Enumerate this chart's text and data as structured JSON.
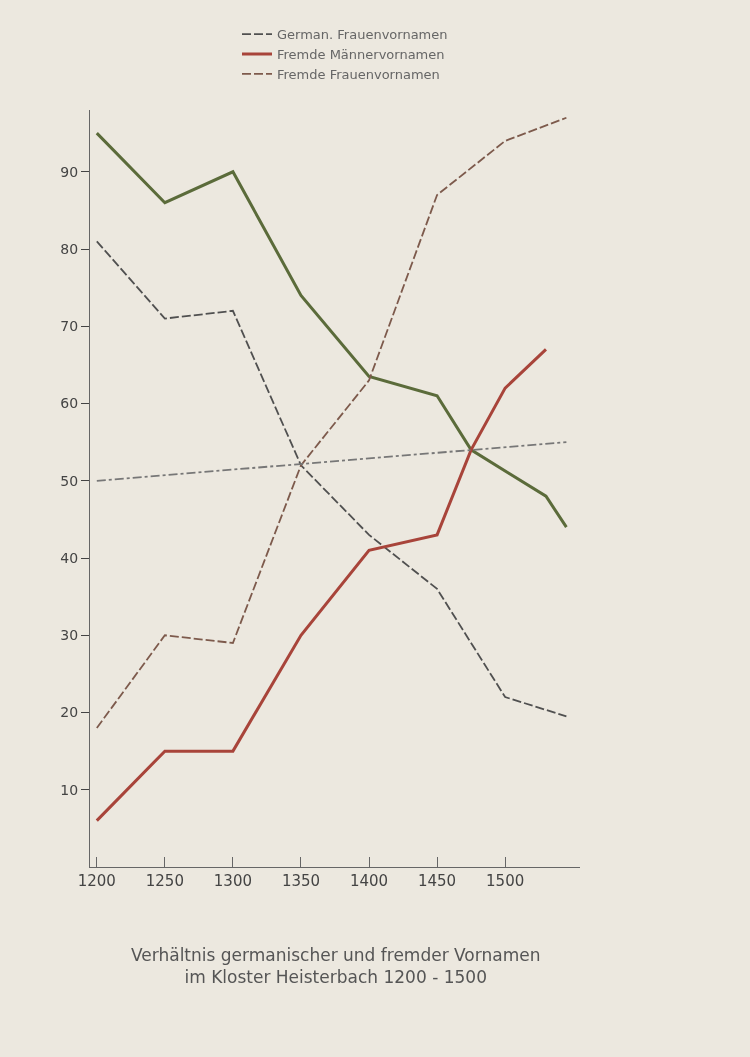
{
  "chart_data": {
    "type": "line",
    "title": "Verhältnis germanischer und fremder Vornamen\nim Kloster Heisterbach 1200 - 1500",
    "legend": "top",
    "grid": false,
    "marker": "none",
    "xlim": [
      1195,
      1555
    ],
    "xticks": [
      1200,
      1250,
      1300,
      1350,
      1400,
      1450,
      1500
    ],
    "ylim": [
      0,
      98
    ],
    "yticks": [
      10,
      20,
      30,
      40,
      50,
      60,
      70,
      80,
      90
    ],
    "series": [
      {
        "color": "#5b6b3a",
        "line_style": "solid",
        "x": [
          1200,
          1250,
          1300,
          1350,
          1400,
          1450,
          1475,
          1530,
          1545
        ],
        "values": [
          95,
          86,
          90,
          74,
          63.5,
          61,
          54,
          48,
          44
        ]
      },
      {
        "name": "German. Frauenvornamen",
        "color": "#505050",
        "line_style": "dashed",
        "x": [
          1200,
          1250,
          1300,
          1350,
          1400,
          1450,
          1500,
          1545
        ],
        "values": [
          81,
          71,
          72,
          52,
          43,
          36,
          22,
          19.5
        ]
      },
      {
        "name": "Fremde Männervornamen",
        "color": "#a8443a",
        "line_style": "solid",
        "x": [
          1200,
          1250,
          1300,
          1350,
          1400,
          1450,
          1475,
          1500,
          1530
        ],
        "values": [
          6,
          15,
          15,
          30,
          41,
          43,
          54,
          62,
          67
        ]
      },
      {
        "name": "Fremde Frauenvornamen",
        "color": "#7d5a4c",
        "line_style": "dashed",
        "x": [
          1200,
          1250,
          1300,
          1350,
          1400,
          1450,
          1500,
          1545
        ],
        "values": [
          18,
          30,
          29,
          52,
          63,
          87,
          94,
          97
        ]
      },
      {
        "color": "#777777",
        "line_style": "dotted",
        "x": [
          1200,
          1545
        ],
        "values": [
          50,
          55
        ]
      }
    ]
  }
}
